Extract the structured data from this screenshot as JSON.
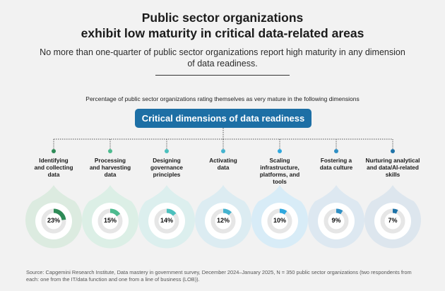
{
  "title_line1": "Public sector organizations",
  "title_line2": "exhibit low maturity in critical data-related areas",
  "subtitle": "No more than one-quarter of public sector organizations report high maturity in any dimension of data readiness.",
  "caption": "Percentage of public sector organizations rating themselves as very mature in the following dimensions",
  "banner": "Critical dimensions of data readiness",
  "source": "Source: Capgemini Research Institute, Data mastery in government survey, December 2024–January 2025, N = 350 public sector organizations (two respondents from each: one from the IT/data function and one from a line of business (LOB)).",
  "chart_data": {
    "type": "pie",
    "unit": "%",
    "categories": [
      "Identifying and collecting data",
      "Processing and harvesting data",
      "Designing governance principles",
      "Activating data",
      "Scaling infrastructure, platforms, and tools",
      "Fostering a data culture",
      "Nurturing analytical and data/AI-related skills"
    ],
    "values": [
      23,
      15,
      14,
      12,
      10,
      9,
      7
    ],
    "value_labels": [
      "23%",
      "15%",
      "14%",
      "12%",
      "10%",
      "9%",
      "7%"
    ],
    "label_lines": [
      [
        "Identifying",
        "and collecting",
        "data"
      ],
      [
        "Processing",
        "and harvesting",
        "data"
      ],
      [
        "Designing",
        "governance",
        "principles"
      ],
      [
        "Activating",
        "data"
      ],
      [
        "Scaling infrastructure,",
        "platforms, and",
        "tools"
      ],
      [
        "Fostering a",
        "data culture"
      ],
      [
        "Nurturing analytical",
        "and data/AI-related",
        "skills"
      ]
    ],
    "colors": [
      "#2e8b57",
      "#4dbb8f",
      "#4cc0bd",
      "#45b3cf",
      "#2fa8de",
      "#2f8fc4",
      "#1e73a8"
    ],
    "halo_colors": [
      "#dcebe0",
      "#dcefe6",
      "#dcefee",
      "#dcecf2",
      "#d8ecf7",
      "#dde8f1",
      "#dde6ee"
    ]
  }
}
